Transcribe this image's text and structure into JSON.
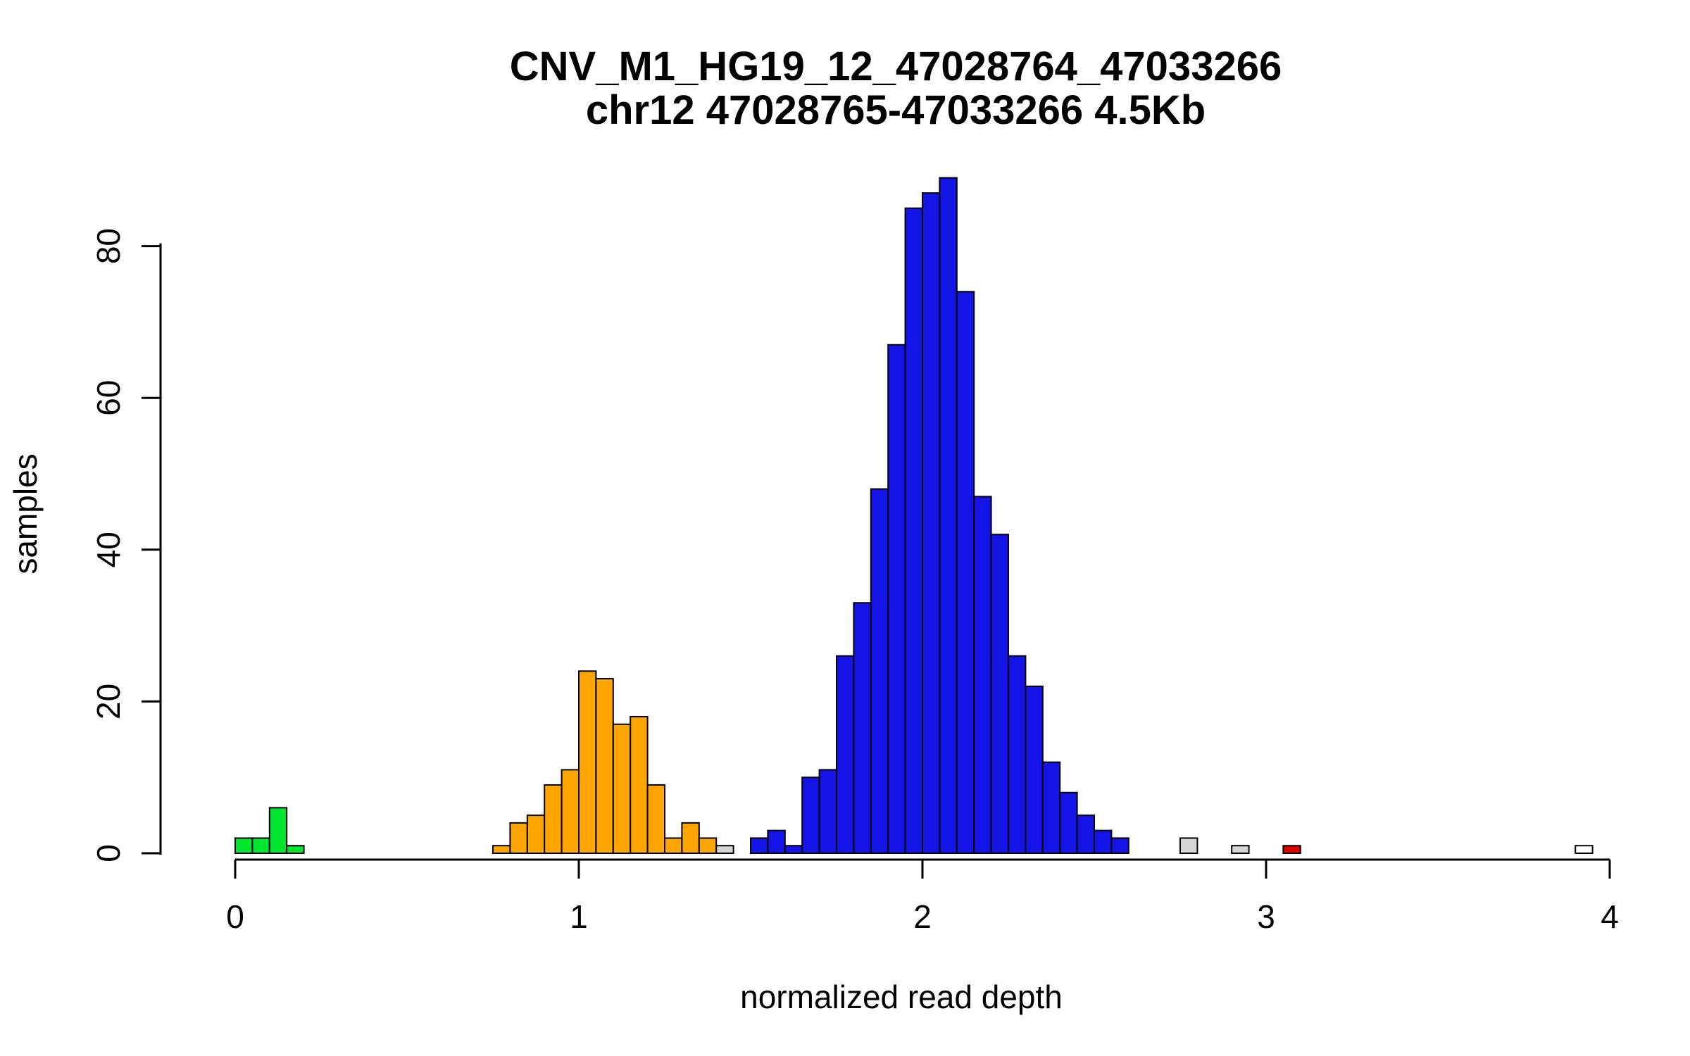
{
  "chart_data": {
    "type": "bar",
    "subtype": "histogram",
    "title": "CNV_M1_HG19_12_47028764_47033266",
    "subtitle": "chr12 47028765-47033266 4.5Kb",
    "xlabel": "normalized read depth",
    "ylabel": "samples",
    "xlim": [
      0,
      4
    ],
    "ylim": [
      0,
      89
    ],
    "x_ticks": [
      0,
      1,
      2,
      3,
      4
    ],
    "y_ticks": [
      0,
      20,
      40,
      60,
      80
    ],
    "bin_width": 0.05,
    "grid": false,
    "legend": "none",
    "colors": {
      "green": "#00E62E",
      "orange": "#FFA500",
      "blue": "#1414E6",
      "gray": "#D6D6D6",
      "red": "#E00000",
      "white": "#FFFFFF"
    },
    "bins": [
      {
        "x": 0.0,
        "count": 2,
        "color": "green"
      },
      {
        "x": 0.05,
        "count": 2,
        "color": "green"
      },
      {
        "x": 0.1,
        "count": 6,
        "color": "green"
      },
      {
        "x": 0.15,
        "count": 1,
        "color": "green"
      },
      {
        "x": 0.75,
        "count": 1,
        "color": "orange"
      },
      {
        "x": 0.8,
        "count": 4,
        "color": "orange"
      },
      {
        "x": 0.85,
        "count": 5,
        "color": "orange"
      },
      {
        "x": 0.9,
        "count": 9,
        "color": "orange"
      },
      {
        "x": 0.95,
        "count": 11,
        "color": "orange"
      },
      {
        "x": 1.0,
        "count": 24,
        "color": "orange"
      },
      {
        "x": 1.05,
        "count": 23,
        "color": "orange"
      },
      {
        "x": 1.1,
        "count": 17,
        "color": "orange"
      },
      {
        "x": 1.15,
        "count": 18,
        "color": "orange"
      },
      {
        "x": 1.2,
        "count": 9,
        "color": "orange"
      },
      {
        "x": 1.25,
        "count": 2,
        "color": "orange"
      },
      {
        "x": 1.3,
        "count": 4,
        "color": "orange"
      },
      {
        "x": 1.35,
        "count": 2,
        "color": "orange"
      },
      {
        "x": 1.4,
        "count": 1,
        "color": "gray"
      },
      {
        "x": 1.5,
        "count": 2,
        "color": "blue"
      },
      {
        "x": 1.55,
        "count": 3,
        "color": "blue"
      },
      {
        "x": 1.6,
        "count": 1,
        "color": "blue"
      },
      {
        "x": 1.65,
        "count": 10,
        "color": "blue"
      },
      {
        "x": 1.7,
        "count": 11,
        "color": "blue"
      },
      {
        "x": 1.75,
        "count": 26,
        "color": "blue"
      },
      {
        "x": 1.8,
        "count": 33,
        "color": "blue"
      },
      {
        "x": 1.85,
        "count": 48,
        "color": "blue"
      },
      {
        "x": 1.9,
        "count": 67,
        "color": "blue"
      },
      {
        "x": 1.95,
        "count": 85,
        "color": "blue"
      },
      {
        "x": 2.0,
        "count": 87,
        "color": "blue"
      },
      {
        "x": 2.05,
        "count": 89,
        "color": "blue"
      },
      {
        "x": 2.1,
        "count": 74,
        "color": "blue"
      },
      {
        "x": 2.15,
        "count": 47,
        "color": "blue"
      },
      {
        "x": 2.2,
        "count": 42,
        "color": "blue"
      },
      {
        "x": 2.25,
        "count": 26,
        "color": "blue"
      },
      {
        "x": 2.3,
        "count": 22,
        "color": "blue"
      },
      {
        "x": 2.35,
        "count": 12,
        "color": "blue"
      },
      {
        "x": 2.4,
        "count": 8,
        "color": "blue"
      },
      {
        "x": 2.45,
        "count": 5,
        "color": "blue"
      },
      {
        "x": 2.5,
        "count": 3,
        "color": "blue"
      },
      {
        "x": 2.55,
        "count": 2,
        "color": "blue"
      },
      {
        "x": 2.75,
        "count": 2,
        "color": "gray"
      },
      {
        "x": 2.9,
        "count": 1,
        "color": "gray"
      },
      {
        "x": 3.05,
        "count": 1,
        "color": "red"
      },
      {
        "x": 3.9,
        "count": 1,
        "color": "white"
      }
    ]
  }
}
